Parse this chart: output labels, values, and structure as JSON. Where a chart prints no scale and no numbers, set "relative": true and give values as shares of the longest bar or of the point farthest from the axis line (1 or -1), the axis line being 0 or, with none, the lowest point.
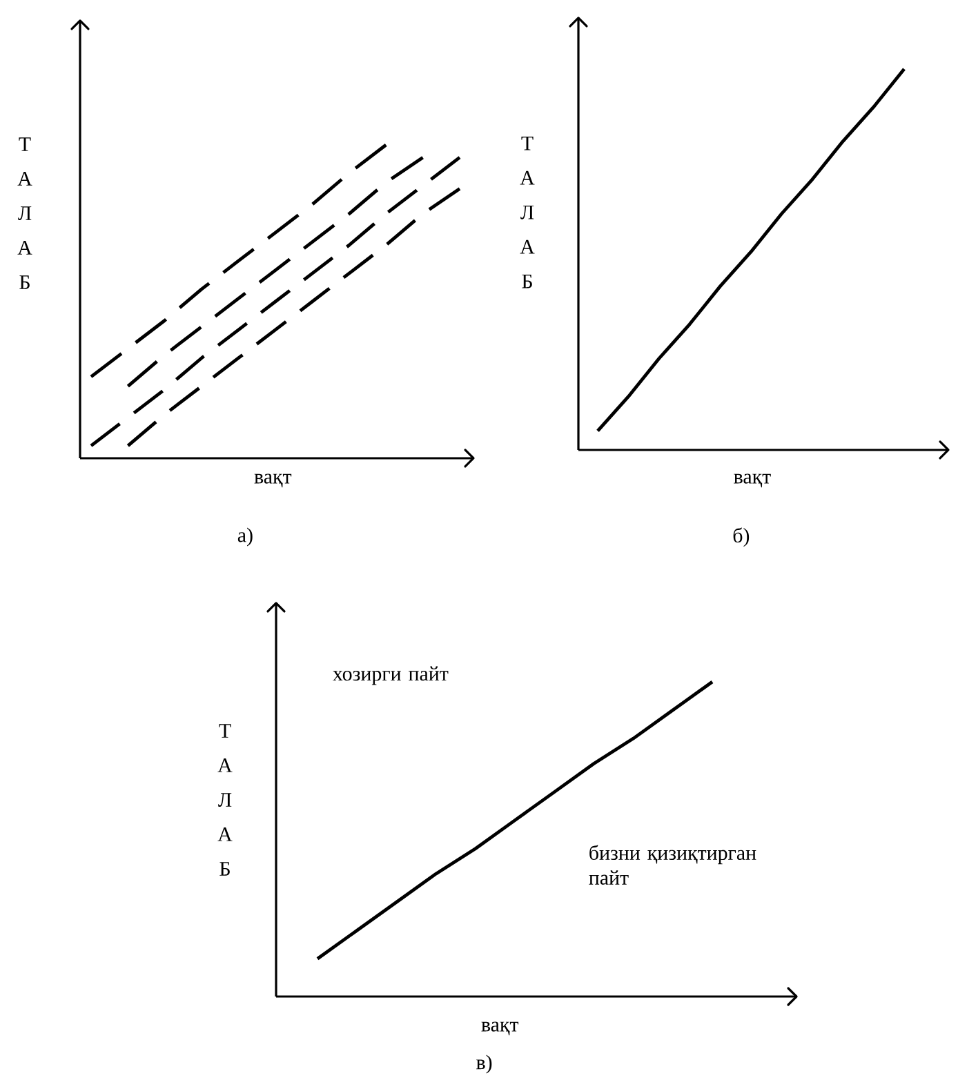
{
  "chart_data": [
    {
      "type": "line",
      "relative": true,
      "line_style": "dashed",
      "title": "а)",
      "xlabel": "вақт",
      "ylabel": "Т А Л А Б",
      "categories": [
        null,
        null,
        null,
        null,
        null,
        null,
        null,
        null,
        null,
        null,
        null
      ],
      "series": [
        {
          "color": "#000000",
          "values": [
            0.26,
            0.35,
            0.44,
            0.54,
            0.63,
            0.72,
            0.81,
            0.91,
            1.0,
            null,
            null
          ]
        },
        {
          "color": "#000000",
          "values": [
            null,
            0.23,
            0.33,
            0.42,
            0.51,
            0.6,
            0.69,
            0.78,
            0.88,
            0.96,
            null
          ]
        },
        {
          "color": "#000000",
          "values": [
            0.04,
            0.13,
            0.22,
            0.32,
            0.41,
            0.5,
            0.59,
            0.68,
            0.78,
            0.87,
            0.96
          ]
        },
        {
          "color": "#000000",
          "values": [
            null,
            0.04,
            0.14,
            0.23,
            0.32,
            0.41,
            0.5,
            0.59,
            0.68,
            0.78,
            0.86
          ]
        }
      ]
    },
    {
      "type": "line",
      "relative": true,
      "line_style": "solid",
      "title": "б)",
      "xlabel": "вақт",
      "ylabel": "Т А Л А Б",
      "categories": [
        null,
        null,
        null,
        null,
        null,
        null,
        null,
        null,
        null,
        null,
        null
      ],
      "series": [
        {
          "color": "#000000",
          "values": [
            0.05,
            0.14,
            0.24,
            0.33,
            0.43,
            0.52,
            0.62,
            0.71,
            0.81,
            0.9,
            1.0
          ]
        }
      ]
    },
    {
      "type": "line",
      "relative": true,
      "line_style": "solid",
      "title": "в)",
      "xlabel": "вақт",
      "ylabel": "Т А Л А Б",
      "categories": [
        null,
        null,
        null,
        null,
        null,
        null,
        null,
        null,
        null,
        null,
        null
      ],
      "annotations": [
        "хозирги пайт",
        "бизни қизиқтирган пайт"
      ],
      "series": [
        {
          "color": "#000000",
          "values": [
            0.12,
            0.21,
            0.3,
            0.39,
            0.47,
            0.56,
            0.65,
            0.74,
            0.82,
            0.91,
            1.0
          ]
        }
      ]
    }
  ]
}
